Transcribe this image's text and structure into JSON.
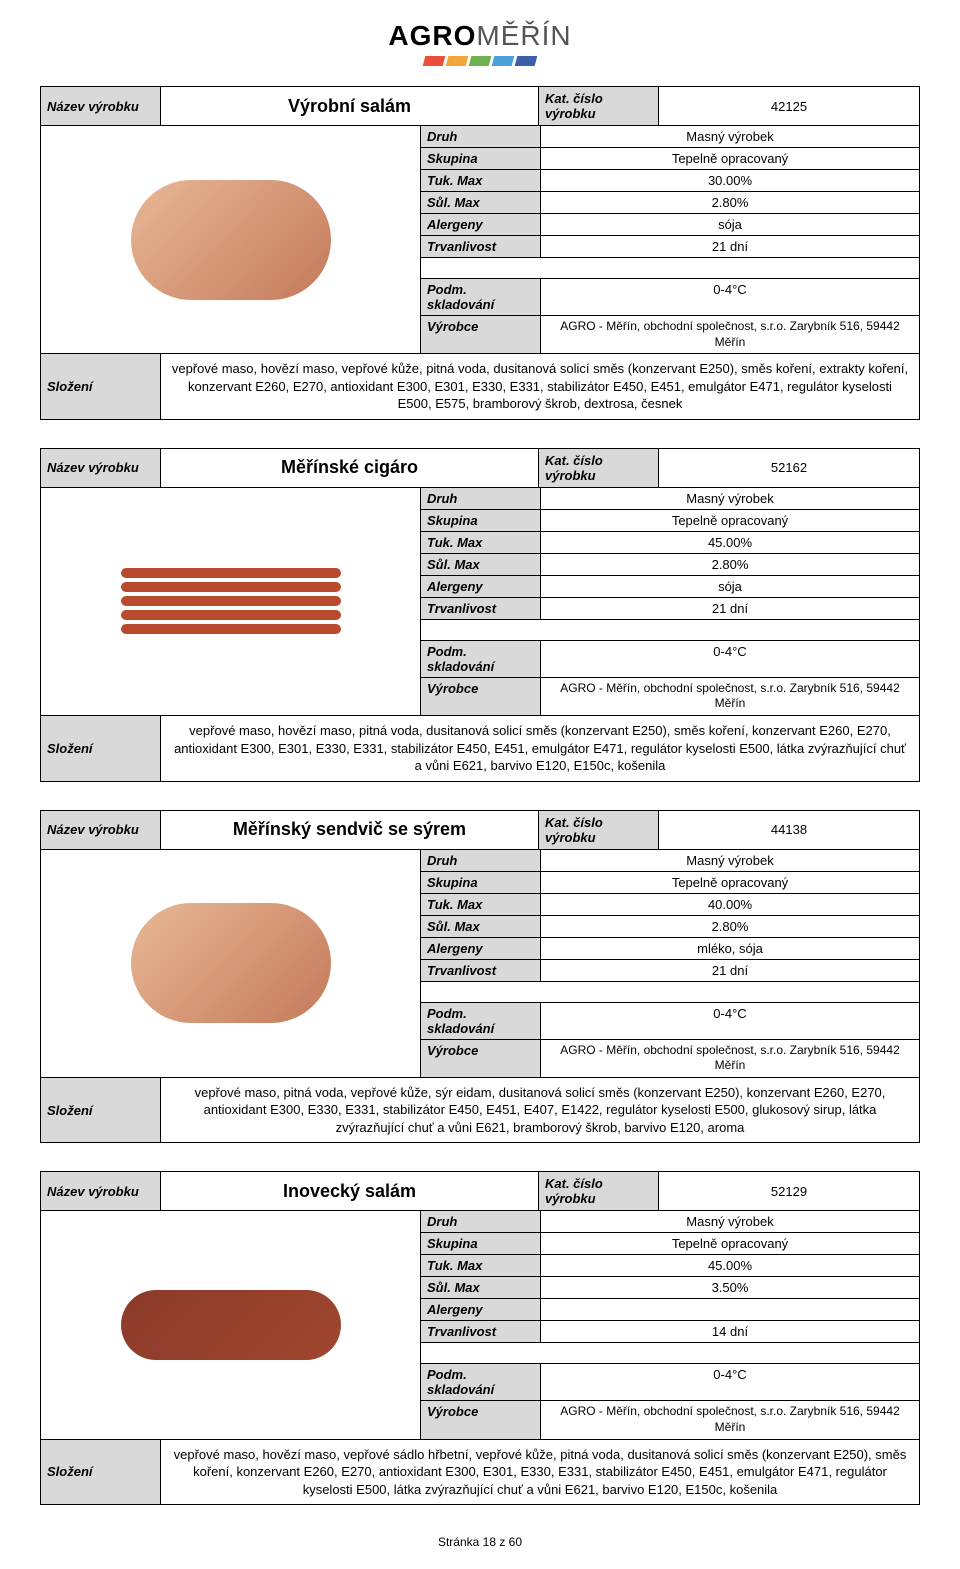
{
  "logo": {
    "text1": "AGRO",
    "text2": "MĚŘÍN",
    "bar_colors": [
      "#e94f3a",
      "#f3a73b",
      "#6db04f",
      "#4aa0d8",
      "#3b5fa8"
    ]
  },
  "labels": {
    "nazev": "Název výrobku",
    "kat": "Kat. číslo výrobku",
    "druh": "Druh",
    "skupina": "Skupina",
    "tuk": "Tuk. Max",
    "sul": "Sůl. Max",
    "alergeny": "Alergeny",
    "trvanlivost": "Trvanlivost",
    "podm": "Podm. skladování",
    "vyrobce": "Výrobce",
    "slozeni": "Složení"
  },
  "vyrobce_text": "AGRO - Měřín, obchodní společnost, s.r.o. Zarybník 516, 59442 Měřín",
  "products": [
    {
      "name": "Výrobní salám",
      "kat": "42125",
      "druh": "Masný výrobek",
      "skupina": "Tepelně opracovaný",
      "tuk": "30.00%",
      "sul": "2.80%",
      "alergeny": "sója",
      "trvanlivost": "21 dní",
      "podm": "0-4°C",
      "img": "loaf",
      "slozeni": "vepřové maso, hovězí maso, vepřové kůže, pitná voda, dusitanová solicí směs (konzervant E250), směs koření, extrakty koření, konzervant E260, E270, antioxidant E300, E301, E330, E331, stabilizátor E450, E451, emulgátor E471, regulátor kyselosti E500, E575, bramborový škrob, dextrosa, česnek"
    },
    {
      "name": "Měřínské cigáro",
      "kat": "52162",
      "druh": "Masný výrobek",
      "skupina": "Tepelně opracovaný",
      "tuk": "45.00%",
      "sul": "2.80%",
      "alergeny": "sója",
      "trvanlivost": "21 dní",
      "podm": "0-4°C",
      "img": "sausage",
      "slozeni": "vepřové maso, hovězí maso, pitná voda, dusitanová solicí směs (konzervant E250), směs koření, konzervant E260, E270, antioxidant E300, E301, E330, E331, stabilizátor E450, E451, emulgátor E471, regulátor kyselosti E500, látka zvýrazňující chuť a vůni E621, barvivo E120, E150c, košenila"
    },
    {
      "name": "Měřínský sendvič se sýrem",
      "kat": "44138",
      "druh": "Masný výrobek",
      "skupina": "Tepelně opracovaný",
      "tuk": "40.00%",
      "sul": "2.80%",
      "alergeny": "mléko, sója",
      "trvanlivost": "21 dní",
      "podm": "0-4°C",
      "img": "loaf",
      "slozeni": "vepřové maso, pitná voda, vepřové kůže, sýr eidam, dusitanová solicí směs (konzervant E250), konzervant E260, E270, antioxidant E300, E330, E331, stabilizátor E450, E451, E407, E1422, regulátor kyselosti E500, glukosový sirup, látka zvýrazňující chuť a vůni E621, bramborový škrob, barvivo E120, aroma"
    },
    {
      "name": "Inovecký salám",
      "kat": "52129",
      "druh": "Masný výrobek",
      "skupina": "Tepelně opracovaný",
      "tuk": "45.00%",
      "sul": "3.50%",
      "alergeny": "",
      "trvanlivost": "14 dní",
      "podm": "0-4°C",
      "img": "salami",
      "slozeni": "vepřové maso, hovězí maso, vepřové sádlo hřbetní, vepřové kůže, pitná voda, dusitanová solicí směs (konzervant E250), směs koření, konzervant E260, E270, antioxidant E300, E301, E330, E331, stabilizátor E450, E451, emulgátor E471, regulátor kyselosti E500, látka zvýrazňující chuť a vůni E621, barvivo E120, E150c, košenila"
    }
  ],
  "footer": "Stránka 18 z 60"
}
